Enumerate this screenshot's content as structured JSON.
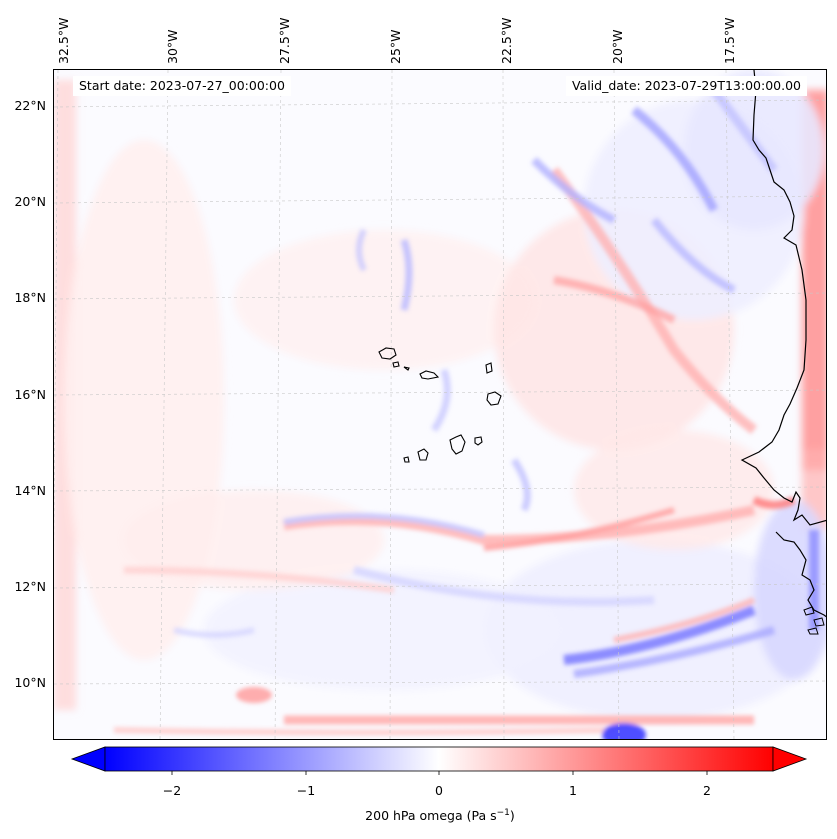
{
  "map": {
    "title_left": "Start date: 2023-07-27_00:00:00",
    "title_right": "Valid_date: 2023-07-29T13:00:00.00",
    "lon_labels": [
      "32.5°W",
      "30°W",
      "27.5°W",
      "25°W",
      "22.5°W",
      "20°W",
      "17.5°W"
    ],
    "lat_labels": [
      "22°N",
      "20°N",
      "18°N",
      "16°N",
      "14°N",
      "12°N",
      "10°N"
    ],
    "variable": "200 hPa omega",
    "units": "Pa s",
    "units_exponent": "−1"
  },
  "colorbar": {
    "ticks": [
      "−2",
      "−1",
      "0",
      "1",
      "2"
    ],
    "tick_values": [
      -2,
      -1,
      0,
      1,
      2
    ],
    "min": -2.6,
    "max": 2.6,
    "low_color": "#0000ff",
    "mid_color": "#ffffff",
    "high_color": "#ff0000"
  },
  "colors": {
    "coastline": "#000000",
    "grid": "#c8c8c8"
  }
}
